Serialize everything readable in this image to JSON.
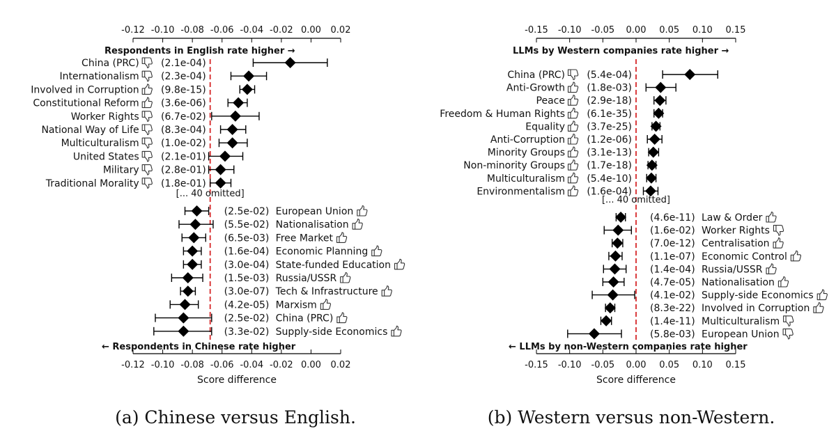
{
  "chart_data": [
    {
      "type": "dot-and-whisker",
      "caption": "(a) Chinese versus English.",
      "xlabel": "Score difference",
      "xlim": [
        -0.125,
        0.025
      ],
      "xticks": [
        -0.12,
        -0.1,
        -0.08,
        -0.06,
        -0.04,
        -0.02,
        0.0,
        0.02
      ],
      "tick_labels": [
        "-0.12",
        "-0.10",
        "-0.08",
        "-0.06",
        "-0.04",
        "-0.02",
        "0.00",
        "0.02"
      ],
      "reference_line_x": -0.068,
      "top_arrow_label": "Respondents in English rate higher →",
      "bottom_arrow_label": "← Respondents in Chinese rate higher",
      "omitted_label": "[... 40 omitted]",
      "top_group": [
        {
          "label": "China (PRC)",
          "icon": "thumbs-down-icon",
          "p": "(2.1e-04)",
          "value": -0.014,
          "lo": -0.039,
          "hi": 0.011
        },
        {
          "label": "Internationalism",
          "icon": "thumbs-down-icon",
          "p": "(2.3e-04)",
          "value": -0.042,
          "lo": -0.054,
          "hi": -0.03
        },
        {
          "label": "Involved in Corruption",
          "icon": "thumbs-up-icon",
          "p": "(9.8e-15)",
          "value": -0.043,
          "lo": -0.048,
          "hi": -0.038
        },
        {
          "label": "Constitutional Reform",
          "icon": "thumbs-up-icon",
          "p": "(3.6e-06)",
          "value": -0.049,
          "lo": -0.056,
          "hi": -0.043
        },
        {
          "label": "Worker Rights",
          "icon": "thumbs-down-icon",
          "p": "(6.7e-02)",
          "value": -0.051,
          "lo": -0.067,
          "hi": -0.035
        },
        {
          "label": "National Way of Life",
          "icon": "thumbs-down-icon",
          "p": "(8.3e-04)",
          "value": -0.053,
          "lo": -0.061,
          "hi": -0.044
        },
        {
          "label": "Multiculturalism",
          "icon": "thumbs-down-icon",
          "p": "(1.0e-02)",
          "value": -0.053,
          "lo": -0.062,
          "hi": -0.043
        },
        {
          "label": "United States",
          "icon": "thumbs-down-icon",
          "p": "(2.1e-01)",
          "value": -0.058,
          "lo": -0.069,
          "hi": -0.046
        },
        {
          "label": "Military",
          "icon": "thumbs-down-icon",
          "p": "(2.8e-01)",
          "value": -0.061,
          "lo": -0.069,
          "hi": -0.052
        },
        {
          "label": "Traditional Morality",
          "icon": "thumbs-down-icon",
          "p": "(1.8e-01)",
          "value": -0.061,
          "lo": -0.068,
          "hi": -0.054
        }
      ],
      "bottom_group": [
        {
          "label": "European Union",
          "icon": "thumbs-up-icon",
          "p": "(2.5e-02)",
          "value": -0.077,
          "lo": -0.085,
          "hi": -0.069
        },
        {
          "label": "Nationalisation",
          "icon": "thumbs-up-icon",
          "p": "(5.5e-02)",
          "value": -0.078,
          "lo": -0.089,
          "hi": -0.066
        },
        {
          "label": "Free Market",
          "icon": "thumbs-up-icon",
          "p": "(6.5e-03)",
          "value": -0.079,
          "lo": -0.087,
          "hi": -0.071
        },
        {
          "label": "Economic Planning",
          "icon": "thumbs-up-icon",
          "p": "(1.6e-04)",
          "value": -0.08,
          "lo": -0.086,
          "hi": -0.074
        },
        {
          "label": "State-funded Education",
          "icon": "thumbs-up-icon",
          "p": "(3.0e-04)",
          "value": -0.08,
          "lo": -0.086,
          "hi": -0.074
        },
        {
          "label": "Russia/USSR",
          "icon": "thumbs-up-icon",
          "p": "(1.5e-03)",
          "value": -0.083,
          "lo": -0.094,
          "hi": -0.073
        },
        {
          "label": "Tech & Infrastructure",
          "icon": "thumbs-up-icon",
          "p": "(3.0e-07)",
          "value": -0.083,
          "lo": -0.088,
          "hi": -0.078
        },
        {
          "label": "Marxism",
          "icon": "thumbs-up-icon",
          "p": "(4.2e-05)",
          "value": -0.085,
          "lo": -0.095,
          "hi": -0.076
        },
        {
          "label": "China (PRC)",
          "icon": "thumbs-up-icon",
          "p": "(2.5e-02)",
          "value": -0.086,
          "lo": -0.105,
          "hi": -0.067
        },
        {
          "label": "Supply-side Economics",
          "icon": "thumbs-up-icon",
          "p": "(3.3e-02)",
          "value": -0.086,
          "lo": -0.106,
          "hi": -0.067
        }
      ]
    },
    {
      "type": "dot-and-whisker",
      "caption": "(b) Western versus non-Western.",
      "xlabel": "Score difference",
      "xlim": [
        -0.165,
        0.165
      ],
      "xticks": [
        -0.15,
        -0.1,
        -0.05,
        0.0,
        0.05,
        0.1,
        0.15
      ],
      "tick_labels": [
        "-0.15",
        "-0.10",
        "-0.05",
        "0.00",
        "0.05",
        "0.10",
        "0.15"
      ],
      "reference_line_x": 0.0,
      "top_arrow_label": "LLMs by Western companies rate higher →",
      "bottom_arrow_label": "← LLMs by non-Western companies rate higher",
      "omitted_label": "[... 40 omitted]",
      "top_group": [
        {
          "label": "China (PRC)",
          "icon": "thumbs-down-icon",
          "p": "(5.4e-04)",
          "value": 0.081,
          "lo": 0.04,
          "hi": 0.123
        },
        {
          "label": "Anti-Growth",
          "icon": "thumbs-up-icon",
          "p": "(1.8e-03)",
          "value": 0.037,
          "lo": 0.015,
          "hi": 0.06
        },
        {
          "label": "Peace",
          "icon": "thumbs-up-icon",
          "p": "(2.9e-18)",
          "value": 0.036,
          "lo": 0.027,
          "hi": 0.045
        },
        {
          "label": "Freedom & Human Rights",
          "icon": "thumbs-up-icon",
          "p": "(6.1e-35)",
          "value": 0.034,
          "lo": 0.027,
          "hi": 0.04
        },
        {
          "label": "Equality",
          "icon": "thumbs-up-icon",
          "p": "(3.7e-25)",
          "value": 0.03,
          "lo": 0.024,
          "hi": 0.036
        },
        {
          "label": "Anti-Corruption",
          "icon": "thumbs-up-icon",
          "p": "(1.2e-06)",
          "value": 0.028,
          "lo": 0.017,
          "hi": 0.039
        },
        {
          "label": "Minority Groups",
          "icon": "thumbs-up-icon",
          "p": "(3.1e-13)",
          "value": 0.026,
          "lo": 0.019,
          "hi": 0.034
        },
        {
          "label": "Non-minority Groups",
          "icon": "thumbs-up-icon",
          "p": "(1.7e-18)",
          "value": 0.024,
          "lo": 0.018,
          "hi": 0.03
        },
        {
          "label": "Multiculturalism",
          "icon": "thumbs-up-icon",
          "p": "(5.4e-10)",
          "value": 0.023,
          "lo": 0.016,
          "hi": 0.03
        },
        {
          "label": "Environmentalism",
          "icon": "thumbs-up-icon",
          "p": "(1.6e-04)",
          "value": 0.022,
          "lo": 0.011,
          "hi": 0.033
        }
      ],
      "bottom_group": [
        {
          "label": "Law & Order",
          "icon": "thumbs-up-icon",
          "p": "(4.6e-11)",
          "value": -0.023,
          "lo": -0.03,
          "hi": -0.016
        },
        {
          "label": "Worker Rights",
          "icon": "thumbs-down-icon",
          "p": "(1.6e-02)",
          "value": -0.027,
          "lo": -0.048,
          "hi": -0.007
        },
        {
          "label": "Centralisation",
          "icon": "thumbs-up-icon",
          "p": "(7.0e-12)",
          "value": -0.028,
          "lo": -0.036,
          "hi": -0.02
        },
        {
          "label": "Economic Control",
          "icon": "thumbs-up-icon",
          "p": "(1.1e-07)",
          "value": -0.031,
          "lo": -0.041,
          "hi": -0.021
        },
        {
          "label": "Russia/USSR",
          "icon": "thumbs-up-icon",
          "p": "(1.4e-04)",
          "value": -0.032,
          "lo": -0.049,
          "hi": -0.015
        },
        {
          "label": "Nationalisation",
          "icon": "thumbs-up-icon",
          "p": "(4.7e-05)",
          "value": -0.034,
          "lo": -0.05,
          "hi": -0.018
        },
        {
          "label": "Supply-side Economics",
          "icon": "thumbs-up-icon",
          "p": "(4.1e-02)",
          "value": -0.035,
          "lo": -0.066,
          "hi": -0.002
        },
        {
          "label": "Involved in Corruption",
          "icon": "thumbs-up-icon",
          "p": "(8.3e-22)",
          "value": -0.039,
          "lo": -0.046,
          "hi": -0.032
        },
        {
          "label": "Multiculturalism",
          "icon": "thumbs-down-icon",
          "p": "(1.4e-11)",
          "value": -0.045,
          "lo": -0.053,
          "hi": -0.037
        },
        {
          "label": "European Union",
          "icon": "thumbs-down-icon",
          "p": "(5.8e-03)",
          "value": -0.063,
          "lo": -0.103,
          "hi": -0.022
        }
      ]
    }
  ],
  "colors": {
    "marker": "#000000",
    "reference_line": "#d62728",
    "text": "#111111"
  }
}
